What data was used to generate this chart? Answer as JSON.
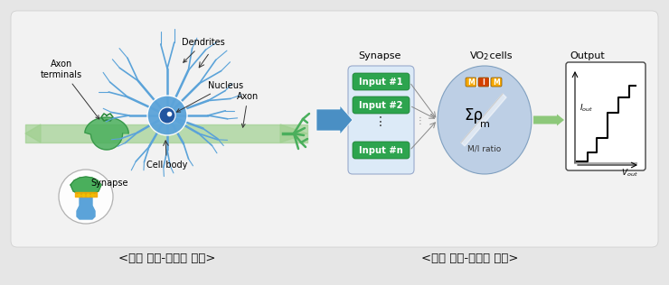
{
  "bg_color": "#e6e6e6",
  "panel_color": "#f2f2f2",
  "title_left": "<뇌의 뉴런-시냅스 구조>",
  "title_right": "<인공 뉴런-시냅스 구조>",
  "synapse_label": "Synapse",
  "vo2_label_pre": "VO",
  "vo2_label_sub": "2",
  "vo2_label_post": " cells",
  "output_label": "Output",
  "input_labels": [
    "Input #1",
    "Input #2",
    "Input #n"
  ],
  "vo2_ratio": "M/I ratio",
  "cell_labels": [
    "M",
    "I",
    "M"
  ],
  "neuron_labels": {
    "axon_terminals": "Axon\nterminals",
    "dendrites": "Dendrites",
    "nucleus": "Nucleus",
    "axon": "Axon",
    "cell_body": "Cell body",
    "synapse": "Synapse"
  },
  "green_box_color": "#2da44e",
  "green_light": "#8dc87a",
  "blue_arrow_color": "#4a8fc4",
  "neuron_blue": "#5ba3d9",
  "neuron_blue_light": "#a8cce8",
  "neuron_dark_blue": "#2255a0",
  "vo2_circle_color": "#b8cce4",
  "neuron_green": "#4aaf5c",
  "neuron_green_dark": "#2d8a3e",
  "neuron_green_light": "#a0d090",
  "synapse_bg": "#dceaf7",
  "orange_color": "#f5a800",
  "red_orange": "#d44000",
  "gray_arrow": "#999999"
}
